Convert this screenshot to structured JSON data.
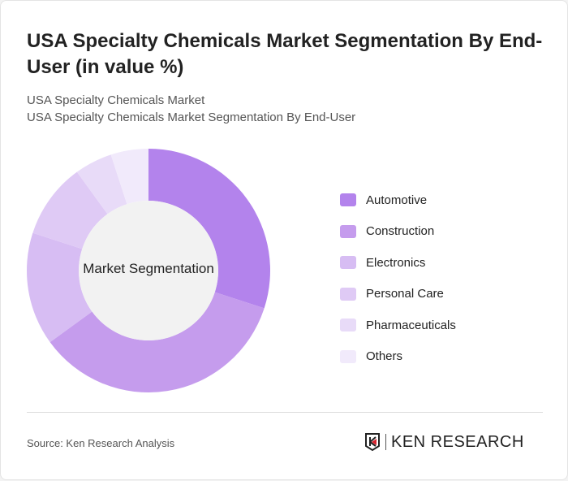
{
  "title": "USA Specialty Chemicals Market Segmentation By End-User (in value %)",
  "subtitle_1": "USA Specialty Chemicals Market",
  "subtitle_2": "USA Specialty Chemicals Market Segmentation By End-User",
  "source": "Source: Ken Research Analysis",
  "logo_text": "KEN RESEARCH",
  "chart_data": {
    "type": "pie",
    "donut": true,
    "center_label": "Market Segmentation",
    "legend_position": "right",
    "categories": [
      "Automotive",
      "Construction",
      "Electronics",
      "Personal Care",
      "Pharmaceuticals",
      "Others"
    ],
    "values": [
      30,
      35,
      15,
      10,
      5,
      5
    ],
    "colors": [
      "#b383ec",
      "#c59ced",
      "#d7bdf3",
      "#dfcaf5",
      "#e8dbf8",
      "#f1eafb"
    ]
  }
}
